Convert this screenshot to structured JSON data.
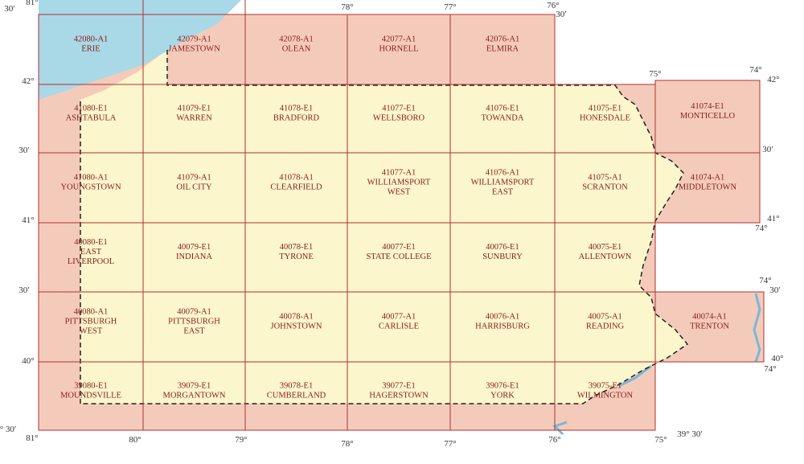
{
  "quads": [
    {
      "code": "42080-A1",
      "name": [
        "ERIE"
      ]
    },
    {
      "code": "42079-A1",
      "name": [
        "JAMESTOWN"
      ]
    },
    {
      "code": "42078-A1",
      "name": [
        "OLEAN"
      ]
    },
    {
      "code": "42077-A1",
      "name": [
        "HORNELL"
      ]
    },
    {
      "code": "42076-A1",
      "name": [
        "ELMIRA"
      ]
    },
    {
      "code": "41080-E1",
      "name": [
        "ASHTABULA"
      ]
    },
    {
      "code": "41079-E1",
      "name": [
        "WARREN"
      ]
    },
    {
      "code": "41078-E1",
      "name": [
        "BRADFORD"
      ]
    },
    {
      "code": "41077-E1",
      "name": [
        "WELLSBORO"
      ]
    },
    {
      "code": "41076-E1",
      "name": [
        "TOWANDA"
      ]
    },
    {
      "code": "41075-E1",
      "name": [
        "HONESDALE"
      ]
    },
    {
      "code": "41074-E1",
      "name": [
        "MONTICELLO"
      ]
    },
    {
      "code": "41080-A1",
      "name": [
        "YOUNGSTOWN"
      ]
    },
    {
      "code": "41079-A1",
      "name": [
        "OIL CITY"
      ]
    },
    {
      "code": "41078-A1",
      "name": [
        "CLEARFIELD"
      ]
    },
    {
      "code": "41077-A1",
      "name": [
        "WILLIAMSPORT",
        "WEST"
      ]
    },
    {
      "code": "41076-A1",
      "name": [
        "WILLIAMSPORT",
        "EAST"
      ]
    },
    {
      "code": "41075-A1",
      "name": [
        "SCRANTON"
      ]
    },
    {
      "code": "41074-A1",
      "name": [
        "MIDDLETOWN"
      ]
    },
    {
      "code": "40080-E1",
      "name": [
        "EAST",
        "LIVERPOOL"
      ]
    },
    {
      "code": "40079-E1",
      "name": [
        "INDIANA"
      ]
    },
    {
      "code": "40078-E1",
      "name": [
        "TYRONE"
      ]
    },
    {
      "code": "40077-E1",
      "name": [
        "STATE COLLEGE"
      ]
    },
    {
      "code": "40076-E1",
      "name": [
        "SUNBURY"
      ]
    },
    {
      "code": "40075-E1",
      "name": [
        "ALLENTOWN"
      ]
    },
    {
      "code": "40080-A1",
      "name": [
        "PITTSBURGH",
        "WEST"
      ]
    },
    {
      "code": "40079-A1",
      "name": [
        "PITTSBURGH",
        "EAST"
      ]
    },
    {
      "code": "40078-A1",
      "name": [
        "JOHNSTOWN"
      ]
    },
    {
      "code": "40077-A1",
      "name": [
        "CARLISLE"
      ]
    },
    {
      "code": "40076-A1",
      "name": [
        "HARRISBURG"
      ]
    },
    {
      "code": "40075-A1",
      "name": [
        "READING"
      ]
    },
    {
      "code": "40074-A1",
      "name": [
        "TRENTON"
      ]
    },
    {
      "code": "39080-E1",
      "name": [
        "MOUNDSVILLE"
      ]
    },
    {
      "code": "39079-E1",
      "name": [
        "MORGANTOWN"
      ]
    },
    {
      "code": "39078-E1",
      "name": [
        "CUMBERLAND"
      ]
    },
    {
      "code": "39077-E1",
      "name": [
        "HAGERSTOWN"
      ]
    },
    {
      "code": "39076-E1",
      "name": [
        "YORK"
      ]
    },
    {
      "code": "39075-E1",
      "name": [
        "WILMINGTON"
      ]
    }
  ],
  "coordinates": [
    "81°",
    "30′",
    "78°",
    "77°",
    "76°",
    "30′",
    "42°",
    "30′",
    "41°",
    "30′",
    "40°",
    "° 30′",
    "81°",
    "80°",
    "79°",
    "78°",
    "77°",
    "76°",
    "75°",
    "39° 30′",
    "75°",
    "74°",
    "42°",
    "30′",
    "41°",
    "74°",
    "74°",
    "30′",
    "40°",
    "74°"
  ]
}
